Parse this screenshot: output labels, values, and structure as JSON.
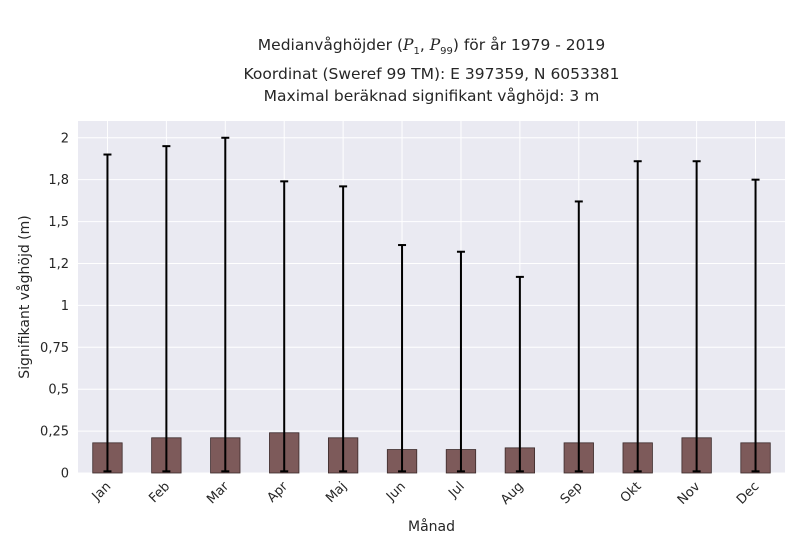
{
  "chart_data": {
    "type": "bar",
    "title_lines": [
      {
        "pre": "Medianvåghöjder (",
        "p1": "P",
        "p1_sub": "1",
        "sep": ", ",
        "p2": "P",
        "p2_sub": "99",
        "post": ") för år 1979 - 2019"
      },
      "Koordinat (Sweref 99 TM): E 397359, N 6053381",
      "Maximal beräknad signifikant våghöjd: 3 m"
    ],
    "xlabel": "Månad",
    "ylabel": "Signifikant våghöjd (m)",
    "categories": [
      "Jan",
      "Feb",
      "Mar",
      "Apr",
      "Maj",
      "Jun",
      "Jul",
      "Aug",
      "Sep",
      "Okt",
      "Nov",
      "Dec"
    ],
    "values": [
      0.18,
      0.21,
      0.21,
      0.24,
      0.21,
      0.14,
      0.14,
      0.15,
      0.18,
      0.18,
      0.21,
      0.18
    ],
    "err_low": [
      0.01,
      0.01,
      0.01,
      0.01,
      0.01,
      0.01,
      0.01,
      0.01,
      0.01,
      0.01,
      0.01,
      0.01
    ],
    "err_high": [
      1.9,
      1.95,
      2.0,
      1.74,
      1.71,
      1.36,
      1.32,
      1.17,
      1.62,
      1.86,
      1.86,
      1.75
    ],
    "ylim": [
      0,
      2.1
    ],
    "yticks": [
      0,
      0.25,
      0.5,
      0.75,
      1,
      1.25,
      1.5,
      1.75,
      2
    ],
    "ytick_labels": [
      "0",
      "0,25",
      "0,5",
      "0,75",
      "1",
      "1,2",
      "1,5",
      "1,8",
      "2"
    ],
    "grid": true,
    "colors": {
      "bar": "#7d5a5a",
      "bar_edge": "#3b2a2a",
      "error": "#000000",
      "plot_bg": "#eaeaf2",
      "grid": "#ffffff"
    }
  }
}
